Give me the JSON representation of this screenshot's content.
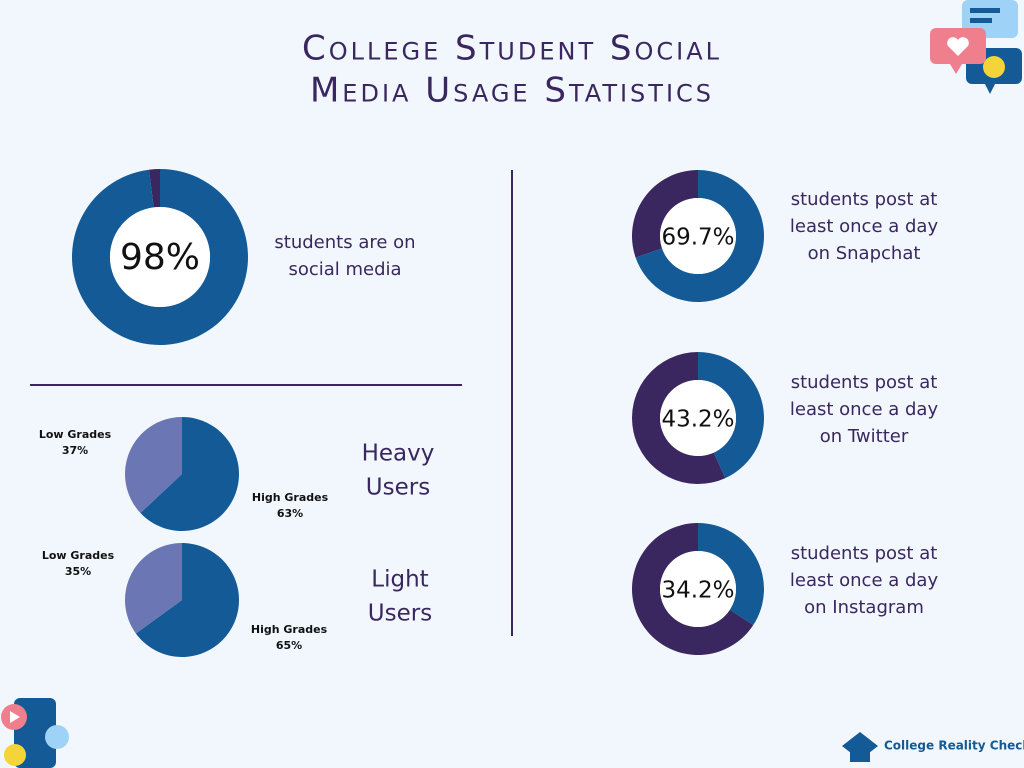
{
  "title": [
    "College Student Social",
    "Media Usage Statistics"
  ],
  "chart_data": [
    {
      "type": "donut",
      "value": 98,
      "value_label": "98%",
      "text": [
        "students are on",
        "social media"
      ],
      "colors": [
        "#135a96",
        "#3a2760"
      ]
    },
    {
      "type": "donut",
      "value": 69.7,
      "value_label": "69.7%",
      "text": [
        "students post at",
        "least once a day",
        "on Snapchat"
      ],
      "colors": [
        "#135a96",
        "#3a2760"
      ]
    },
    {
      "type": "donut",
      "value": 43.2,
      "value_label": "43.2%",
      "text": [
        "students post at",
        "least once a day",
        "on Twitter"
      ],
      "colors": [
        "#135a96",
        "#3a2760"
      ]
    },
    {
      "type": "donut",
      "value": 34.2,
      "value_label": "34.2%",
      "text": [
        "students post at",
        "least once a day",
        "on Instagram"
      ],
      "colors": [
        "#135a96",
        "#3a2760"
      ]
    },
    {
      "type": "pie",
      "title": [
        "Heavy",
        "Users"
      ],
      "categories": [
        "High Grades",
        "Low Grades"
      ],
      "values": [
        63,
        37
      ],
      "value_labels": [
        "63%",
        "37%"
      ],
      "colors": [
        "#135a96",
        "#6b77b5"
      ]
    },
    {
      "type": "pie",
      "title": [
        "Light",
        "Users"
      ],
      "categories": [
        "High Grades",
        "Low Grades"
      ],
      "values": [
        65,
        35
      ],
      "value_labels": [
        "65%",
        "35%"
      ],
      "colors": [
        "#135a96",
        "#6b77b5"
      ]
    }
  ],
  "brand": "College Reality Check"
}
